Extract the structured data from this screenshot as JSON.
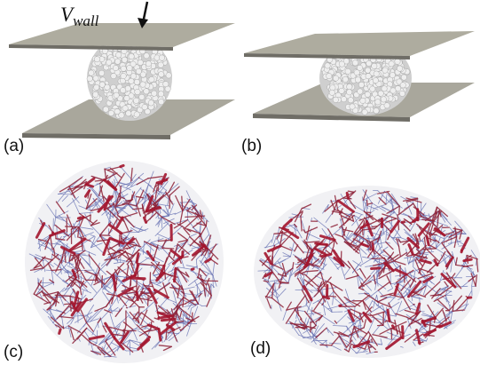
{
  "annotation": {
    "symbol": "V",
    "subscript": "wall"
  },
  "panels": [
    {
      "label": "(a)"
    },
    {
      "label": "(b)"
    },
    {
      "label": "(c)"
    },
    {
      "label": "(d)"
    }
  ]
}
